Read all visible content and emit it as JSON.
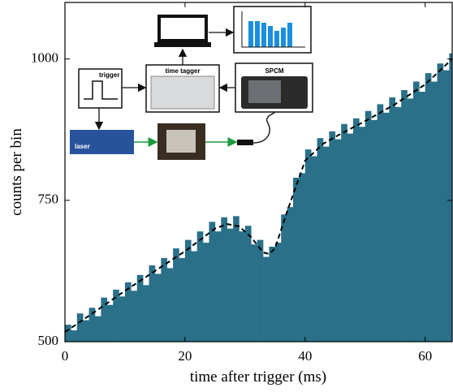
{
  "chart_data": {
    "type": "histogram",
    "xlabel": "time after trigger (ms)",
    "ylabel": "counts per bin",
    "bins": [
      0,
      1,
      2,
      3,
      4,
      5,
      6,
      7,
      8,
      9,
      10,
      11,
      12,
      13,
      14,
      15,
      16,
      17,
      18,
      19,
      20,
      21,
      22,
      23,
      24,
      25,
      26,
      27,
      28,
      29,
      30,
      31,
      32,
      33,
      34,
      35,
      36,
      37,
      38,
      39,
      40,
      41,
      42,
      43,
      44,
      45,
      46,
      47,
      48,
      49,
      50,
      51,
      52,
      53,
      54,
      55,
      56,
      57,
      58,
      59,
      60,
      61,
      62,
      63,
      64,
      65
    ],
    "counts": [
      530,
      520,
      550,
      538,
      560,
      545,
      578,
      565,
      592,
      580,
      605,
      590,
      618,
      600,
      635,
      620,
      648,
      630,
      665,
      648,
      680,
      660,
      695,
      675,
      712,
      695,
      720,
      700,
      722,
      695,
      705,
      672,
      680,
      650,
      668,
      675,
      725,
      738,
      790,
      798,
      840,
      828,
      860,
      845,
      872,
      858,
      885,
      868,
      895,
      880,
      908,
      892,
      920,
      905,
      932,
      915,
      945,
      930,
      960,
      942,
      975,
      960,
      992,
      980,
      1010
    ],
    "color": "#2a7089",
    "fit": {
      "x": [
        0,
        5,
        10,
        15,
        20,
        25,
        27,
        29,
        31,
        33,
        34,
        35,
        37,
        40,
        43,
        46,
        50,
        55,
        60,
        64.5
      ],
      "y": [
        517,
        553,
        590,
        625,
        660,
        700,
        708,
        704,
        685,
        658,
        655,
        665,
        730,
        820,
        850,
        868,
        890,
        920,
        955,
        1000
      ],
      "color": "#000000"
    },
    "xlim": [
      0,
      64.5
    ],
    "ylim": [
      500,
      1100
    ],
    "xticks": [
      0,
      20,
      40,
      60
    ],
    "yticks": [
      500,
      750,
      1000
    ],
    "inset": {
      "trigger": "trigger",
      "time_tagger": "time tagger",
      "spcm": "SPCM",
      "laser": "laser"
    }
  }
}
